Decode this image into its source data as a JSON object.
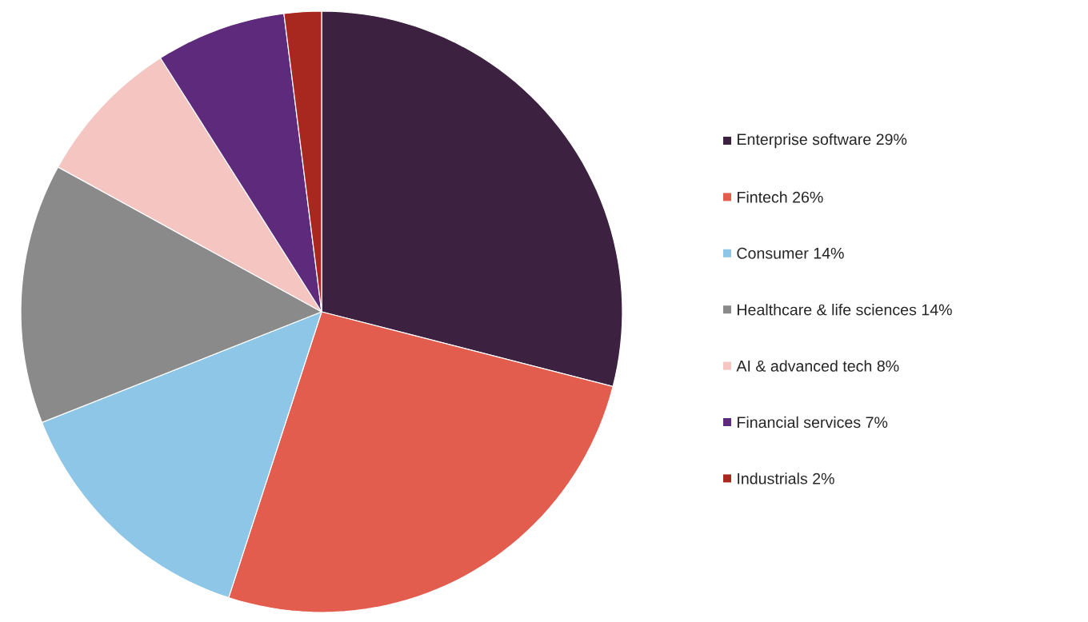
{
  "chart_data": {
    "type": "pie",
    "categories": [
      "Enterprise software",
      "Fintech",
      "Consumer",
      "Healthcare & life sciences",
      "AI & advanced tech",
      "Financial services",
      "Industrials"
    ],
    "values": [
      29,
      26,
      14,
      14,
      8,
      7,
      2
    ],
    "value_labels": [
      "29%",
      "26%",
      "14%",
      "14%",
      "8%",
      "7%",
      "2%"
    ],
    "colors": [
      "#3c2240",
      "#e35d4f",
      "#8ec6e8",
      "#8a8a8a",
      "#f5c5c2",
      "#5e2a7c",
      "#a8271e"
    ],
    "legend": "right"
  }
}
